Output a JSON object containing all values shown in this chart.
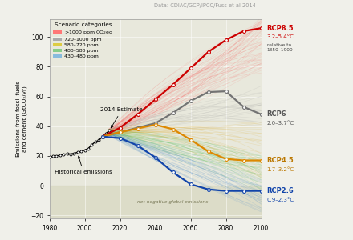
{
  "title": "Data: CDIAC/GCP/IPCC/Fuss et al 2014",
  "ylabel": "Emissions from fossil fuels\nand cement (GtCO₂/yr)",
  "xlim": [
    1980,
    2100
  ],
  "ylim": [
    -22,
    112
  ],
  "background_color": "#f0f0ea",
  "plot_bg": "#e8e8dc",
  "historical": {
    "years": [
      1980,
      1982,
      1984,
      1986,
      1988,
      1990,
      1992,
      1994,
      1996,
      1998,
      2000,
      2002,
      2004,
      2006,
      2008,
      2010,
      2012,
      2014
    ],
    "values": [
      19.2,
      19.8,
      20.1,
      20.4,
      21.0,
      21.5,
      21.3,
      21.8,
      22.5,
      23.0,
      24.0,
      25.0,
      27.5,
      29.5,
      30.5,
      33.0,
      35.0,
      37.2
    ]
  },
  "rcp85": {
    "years": [
      2010,
      2020,
      2030,
      2040,
      2050,
      2060,
      2070,
      2080,
      2090,
      2100
    ],
    "values": [
      33.0,
      39.0,
      48.0,
      58.0,
      68.0,
      79.0,
      90.0,
      98.0,
      104.0,
      106.0
    ],
    "color": "#cc0000",
    "label": "RCP8.5",
    "sublabel": "3.2–5.4°C",
    "label_color": "#cc0000"
  },
  "rcp6": {
    "years": [
      2010,
      2020,
      2030,
      2040,
      2050,
      2060,
      2070,
      2080,
      2090,
      2100
    ],
    "values": [
      33.0,
      36.0,
      39.0,
      42.0,
      49.0,
      57.0,
      63.0,
      63.5,
      53.0,
      48.0
    ],
    "color": "#737373",
    "label": "RCP6",
    "sublabel": "2.0–3.7°C",
    "label_color": "#555555"
  },
  "rcp45": {
    "years": [
      2010,
      2020,
      2030,
      2040,
      2050,
      2060,
      2070,
      2080,
      2090,
      2100
    ],
    "values": [
      33.0,
      36.0,
      38.5,
      41.0,
      38.0,
      31.0,
      23.0,
      18.0,
      17.0,
      17.0
    ],
    "color": "#dd8800",
    "label": "RCP4.5",
    "sublabel": "1.7–3.2°C",
    "label_color": "#bb7700"
  },
  "rcp26": {
    "years": [
      2010,
      2020,
      2030,
      2040,
      2050,
      2060,
      2070,
      2080,
      2090,
      2100
    ],
    "values": [
      33.0,
      32.0,
      27.0,
      19.0,
      9.0,
      1.0,
      -2.5,
      -3.5,
      -3.5,
      -3.5
    ],
    "color": "#1144aa",
    "label": "RCP2.6",
    "sublabel": "0.9–2.3°C",
    "label_color": "#1144aa"
  },
  "net_negative_label": "net-negative global emissions",
  "annotation_2014": "2014 Estimate",
  "annotation_hist": "Historical emissions",
  "relative_label": "relative to\n1850–1900"
}
